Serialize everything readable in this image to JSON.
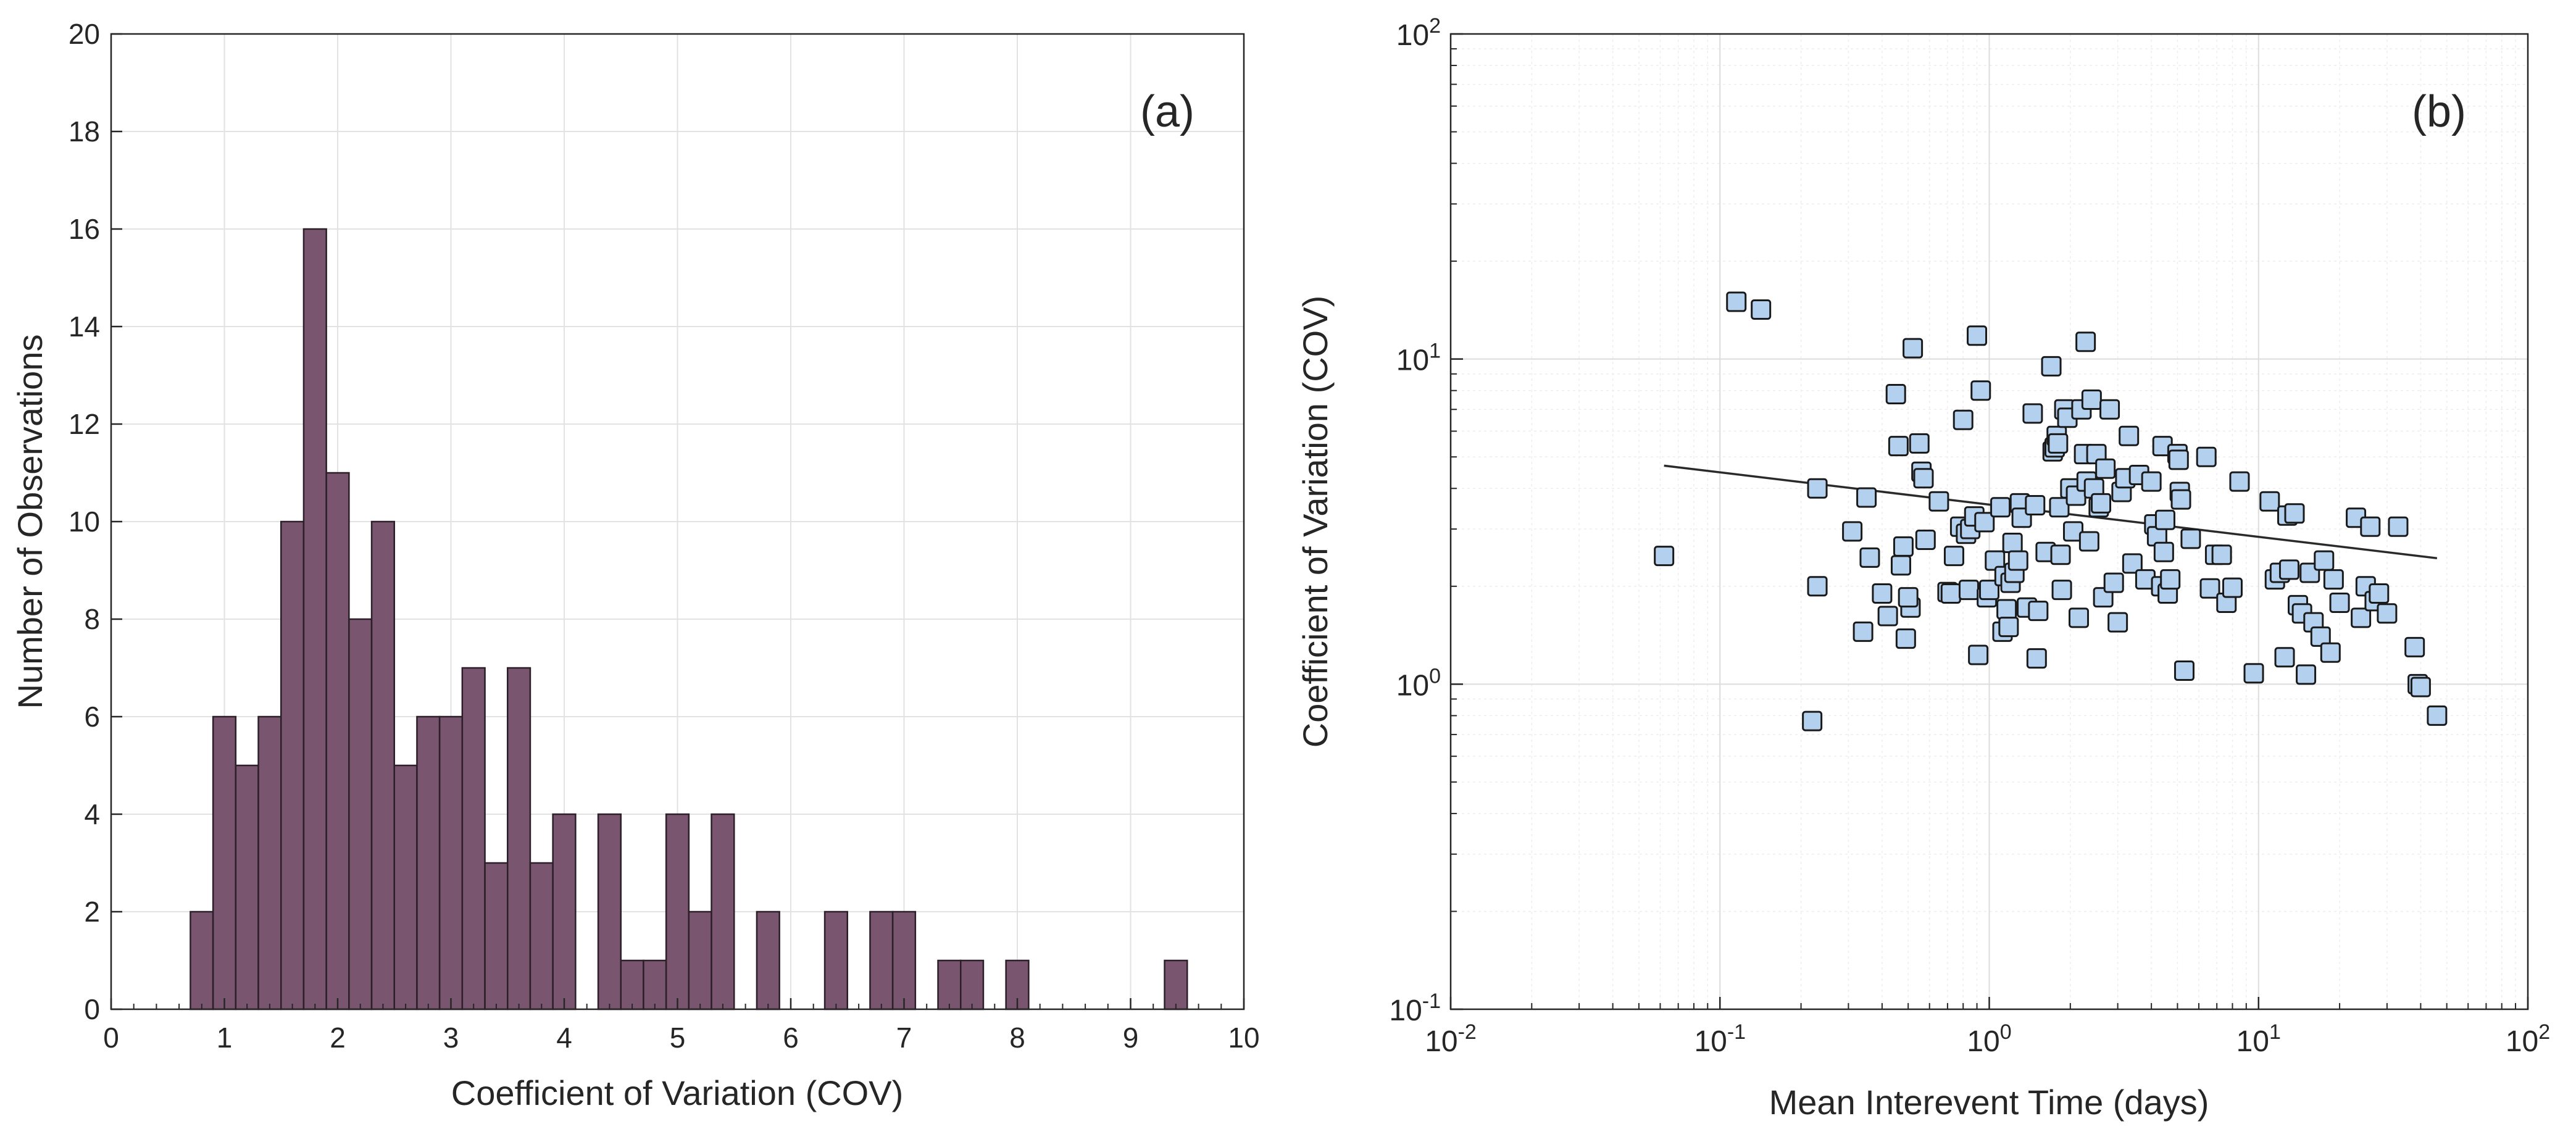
{
  "chart_data": [
    {
      "type": "bar",
      "panel_label": "(a)",
      "title": "",
      "xlabel": "Coefficient of Variation (COV)",
      "ylabel": "Number of Observations",
      "xlim": [
        0,
        10
      ],
      "ylim": [
        0,
        20
      ],
      "grid": true,
      "bin_width": 0.2,
      "xticks": [
        "0",
        "1",
        "2",
        "3",
        "4",
        "5",
        "6",
        "7",
        "8",
        "9",
        "10"
      ],
      "yticks": [
        "0",
        "2",
        "4",
        "6",
        "8",
        "10",
        "12",
        "14",
        "16",
        "18",
        "20"
      ],
      "bar_color": "#7a5570",
      "bins": [
        {
          "x": 0.8,
          "count": 2
        },
        {
          "x": 1.0,
          "count": 6
        },
        {
          "x": 1.2,
          "count": 5
        },
        {
          "x": 1.4,
          "count": 6
        },
        {
          "x": 1.6,
          "count": 10
        },
        {
          "x": 1.8,
          "count": 16
        },
        {
          "x": 2.0,
          "count": 11
        },
        {
          "x": 2.2,
          "count": 8
        },
        {
          "x": 2.4,
          "count": 10
        },
        {
          "x": 2.6,
          "count": 5
        },
        {
          "x": 2.8,
          "count": 6
        },
        {
          "x": 3.0,
          "count": 6
        },
        {
          "x": 3.2,
          "count": 7
        },
        {
          "x": 3.4,
          "count": 3
        },
        {
          "x": 3.6,
          "count": 7
        },
        {
          "x": 3.8,
          "count": 3
        },
        {
          "x": 4.0,
          "count": 4
        },
        {
          "x": 4.4,
          "count": 4
        },
        {
          "x": 4.6,
          "count": 1
        },
        {
          "x": 4.8,
          "count": 1
        },
        {
          "x": 5.0,
          "count": 4
        },
        {
          "x": 5.2,
          "count": 2
        },
        {
          "x": 5.4,
          "count": 4
        },
        {
          "x": 5.8,
          "count": 2
        },
        {
          "x": 6.4,
          "count": 2
        },
        {
          "x": 6.8,
          "count": 2
        },
        {
          "x": 7.0,
          "count": 2
        },
        {
          "x": 7.4,
          "count": 1
        },
        {
          "x": 7.6,
          "count": 1
        },
        {
          "x": 8.0,
          "count": 1
        },
        {
          "x": 9.4,
          "count": 1
        }
      ]
    },
    {
      "type": "scatter",
      "panel_label": "(b)",
      "title": "",
      "xlabel": "Mean Interevent Time (days)",
      "ylabel": "Coefficient of Variation (COV)",
      "xscale": "log",
      "yscale": "log",
      "xlim": [
        0.01,
        100
      ],
      "ylim": [
        0.1,
        100
      ],
      "grid": true,
      "xticks": [
        {
          "base": "10",
          "exp": "-2"
        },
        {
          "base": "10",
          "exp": "-1"
        },
        {
          "base": "10",
          "exp": "0"
        },
        {
          "base": "10",
          "exp": "1"
        },
        {
          "base": "10",
          "exp": "2"
        }
      ],
      "yticks": [
        {
          "base": "10",
          "exp": "-1"
        },
        {
          "base": "10",
          "exp": "0"
        },
        {
          "base": "10",
          "exp": "1"
        },
        {
          "base": "10",
          "exp": "2"
        }
      ],
      "marker_color": "#b3d1ef",
      "fit_line": {
        "x": [
          0.062,
          46
        ],
        "y": [
          4.7,
          2.44
        ]
      },
      "points": [
        [
          0.062,
          2.48
        ],
        [
          0.115,
          15.0
        ],
        [
          0.142,
          14.2
        ],
        [
          0.22,
          0.77
        ],
        [
          0.23,
          4.0
        ],
        [
          0.23,
          2.0
        ],
        [
          0.31,
          2.95
        ],
        [
          0.34,
          1.45
        ],
        [
          0.35,
          3.75
        ],
        [
          0.36,
          2.45
        ],
        [
          0.4,
          1.9
        ],
        [
          0.42,
          1.62
        ],
        [
          0.45,
          7.8
        ],
        [
          0.46,
          5.4
        ],
        [
          0.47,
          2.32
        ],
        [
          0.48,
          2.65
        ],
        [
          0.49,
          1.38
        ],
        [
          0.51,
          1.72
        ],
        [
          0.5,
          1.85
        ],
        [
          0.52,
          10.8
        ],
        [
          0.55,
          5.5
        ],
        [
          0.56,
          4.5
        ],
        [
          0.57,
          4.3
        ],
        [
          0.58,
          2.78
        ],
        [
          0.65,
          3.65
        ],
        [
          0.7,
          1.92
        ],
        [
          0.72,
          1.9
        ],
        [
          0.74,
          2.48
        ],
        [
          0.78,
          3.05
        ],
        [
          0.8,
          6.5
        ],
        [
          0.82,
          2.9
        ],
        [
          0.84,
          1.95
        ],
        [
          0.85,
          3.0
        ],
        [
          0.88,
          3.28
        ],
        [
          0.9,
          11.8
        ],
        [
          0.91,
          1.23
        ],
        [
          0.93,
          8.0
        ],
        [
          0.96,
          3.15
        ],
        [
          0.98,
          1.85
        ],
        [
          1.0,
          1.95
        ],
        [
          1.05,
          2.4
        ],
        [
          1.1,
          3.5
        ],
        [
          1.12,
          1.45
        ],
        [
          1.14,
          2.15
        ],
        [
          1.16,
          1.7
        ],
        [
          1.18,
          1.5
        ],
        [
          1.2,
          2.05
        ],
        [
          1.22,
          2.72
        ],
        [
          1.24,
          2.2
        ],
        [
          1.28,
          2.4
        ],
        [
          1.3,
          3.6
        ],
        [
          1.32,
          3.25
        ],
        [
          1.38,
          1.72
        ],
        [
          1.45,
          6.8
        ],
        [
          1.48,
          3.55
        ],
        [
          1.5,
          1.2
        ],
        [
          1.52,
          1.68
        ],
        [
          1.62,
          2.55
        ],
        [
          1.7,
          9.5
        ],
        [
          1.72,
          5.2
        ],
        [
          1.75,
          5.35
        ],
        [
          1.78,
          5.8
        ],
        [
          1.8,
          5.5
        ],
        [
          1.82,
          3.5
        ],
        [
          1.84,
          2.5
        ],
        [
          1.86,
          1.95
        ],
        [
          1.9,
          7.0
        ],
        [
          1.95,
          6.6
        ],
        [
          2.0,
          4.0
        ],
        [
          2.05,
          2.95
        ],
        [
          2.1,
          3.8
        ],
        [
          2.15,
          1.6
        ],
        [
          2.2,
          7.0
        ],
        [
          2.25,
          5.1
        ],
        [
          2.28,
          11.3
        ],
        [
          2.3,
          4.2
        ],
        [
          2.35,
          2.75
        ],
        [
          2.4,
          7.5
        ],
        [
          2.45,
          4.0
        ],
        [
          2.5,
          5.1
        ],
        [
          2.55,
          3.5
        ],
        [
          2.6,
          3.6
        ],
        [
          2.65,
          1.85
        ],
        [
          2.7,
          4.6
        ],
        [
          2.8,
          7.0
        ],
        [
          2.9,
          2.05
        ],
        [
          3.0,
          1.55
        ],
        [
          3.1,
          3.9
        ],
        [
          3.2,
          4.3
        ],
        [
          3.3,
          5.8
        ],
        [
          3.4,
          2.35
        ],
        [
          3.6,
          4.4
        ],
        [
          3.8,
          2.1
        ],
        [
          4.0,
          4.2
        ],
        [
          4.1,
          3.1
        ],
        [
          4.2,
          2.85
        ],
        [
          4.35,
          2.0
        ],
        [
          4.4,
          5.4
        ],
        [
          4.45,
          2.55
        ],
        [
          4.5,
          3.2
        ],
        [
          4.6,
          1.9
        ],
        [
          4.7,
          2.1
        ],
        [
          5.0,
          5.1
        ],
        [
          5.05,
          4.9
        ],
        [
          5.1,
          3.9
        ],
        [
          5.15,
          3.7
        ],
        [
          5.3,
          1.1
        ],
        [
          5.6,
          2.8
        ],
        [
          6.4,
          5.0
        ],
        [
          6.6,
          1.97
        ],
        [
          6.9,
          2.5
        ],
        [
          7.3,
          2.5
        ],
        [
          7.6,
          1.78
        ],
        [
          8.0,
          1.98
        ],
        [
          8.5,
          4.2
        ],
        [
          9.6,
          1.08
        ],
        [
          11.0,
          3.65
        ],
        [
          11.5,
          2.1
        ],
        [
          12.0,
          2.2
        ],
        [
          12.5,
          1.21
        ],
        [
          12.8,
          3.3
        ],
        [
          13.0,
          2.25
        ],
        [
          13.6,
          3.35
        ],
        [
          14.0,
          1.75
        ],
        [
          14.5,
          1.65
        ],
        [
          15.0,
          1.07
        ],
        [
          15.5,
          2.2
        ],
        [
          16.0,
          1.55
        ],
        [
          17.0,
          1.4
        ],
        [
          17.5,
          2.4
        ],
        [
          18.5,
          1.25
        ],
        [
          19.0,
          2.1
        ],
        [
          20.0,
          1.78
        ],
        [
          23.0,
          3.25
        ],
        [
          24.0,
          1.6
        ],
        [
          25.0,
          2.0
        ],
        [
          26.0,
          3.05
        ],
        [
          27.0,
          1.8
        ],
        [
          28.0,
          1.9
        ],
        [
          30.0,
          1.65
        ],
        [
          33.0,
          3.05
        ],
        [
          38.0,
          1.3
        ],
        [
          39.0,
          1.0
        ],
        [
          40.0,
          0.98
        ],
        [
          46.0,
          0.8
        ]
      ]
    }
  ]
}
